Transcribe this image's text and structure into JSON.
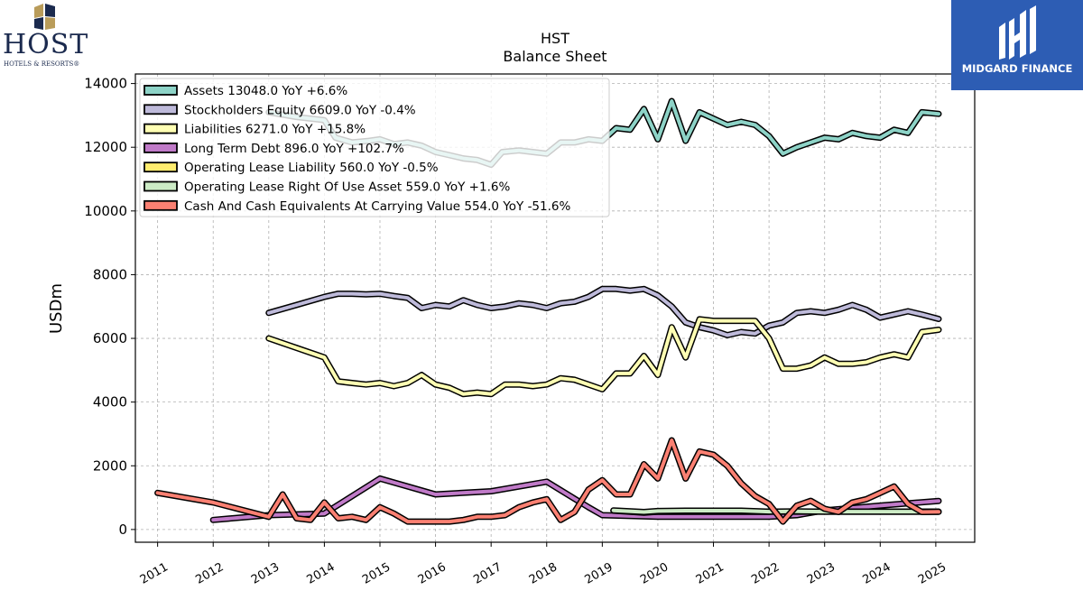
{
  "brand": {
    "host_name": "HOST",
    "host_sub": "HOTELS & RESORTS®",
    "watermark": "MIDGARD FINANCE"
  },
  "chart_data": {
    "type": "line",
    "title": "HST",
    "subtitle": "Balance  Sheet",
    "ylabel": "USDm",
    "xlabel": "",
    "ylim": [
      -400,
      14300
    ],
    "xlim": [
      2010.6,
      2025.7
    ],
    "yticks": [
      0,
      2000,
      4000,
      6000,
      8000,
      10000,
      12000,
      14000
    ],
    "xticks": [
      "2011",
      "2012",
      "2013",
      "2014",
      "2015",
      "2016",
      "2017",
      "2018",
      "2019",
      "2020",
      "2021",
      "2022",
      "2023",
      "2024",
      "2025"
    ],
    "grid": true,
    "legend_position": "top-left",
    "series": [
      {
        "name": "Assets",
        "legend": "Assets  13048.0 YoY +6.6%",
        "color": "#8dd3c7",
        "points": [
          [
            2013.0,
            13100
          ],
          [
            2013.5,
            12950
          ],
          [
            2014.0,
            12850
          ],
          [
            2014.2,
            12300
          ],
          [
            2014.5,
            12150
          ],
          [
            2014.8,
            12200
          ],
          [
            2015.0,
            12250
          ],
          [
            2015.25,
            12100
          ],
          [
            2015.5,
            12150
          ],
          [
            2015.75,
            12050
          ],
          [
            2016.0,
            11850
          ],
          [
            2016.25,
            11750
          ],
          [
            2016.5,
            11650
          ],
          [
            2016.75,
            11600
          ],
          [
            2017.0,
            11450
          ],
          [
            2017.2,
            11850
          ],
          [
            2017.5,
            11900
          ],
          [
            2017.75,
            11850
          ],
          [
            2018.0,
            11800
          ],
          [
            2018.25,
            12150
          ],
          [
            2018.5,
            12150
          ],
          [
            2018.75,
            12250
          ],
          [
            2019.0,
            12200
          ],
          [
            2019.25,
            12600
          ],
          [
            2019.5,
            12550
          ],
          [
            2019.75,
            13200
          ],
          [
            2020.0,
            12250
          ],
          [
            2020.25,
            13450
          ],
          [
            2020.5,
            12200
          ],
          [
            2020.75,
            13100
          ],
          [
            2021.0,
            12900
          ],
          [
            2021.25,
            12700
          ],
          [
            2021.5,
            12800
          ],
          [
            2021.75,
            12700
          ],
          [
            2022.0,
            12350
          ],
          [
            2022.25,
            11800
          ],
          [
            2022.5,
            12000
          ],
          [
            2022.75,
            12150
          ],
          [
            2023.0,
            12300
          ],
          [
            2023.25,
            12250
          ],
          [
            2023.5,
            12450
          ],
          [
            2023.75,
            12350
          ],
          [
            2024.0,
            12300
          ],
          [
            2024.25,
            12550
          ],
          [
            2024.5,
            12450
          ],
          [
            2024.75,
            13100
          ],
          [
            2025.05,
            13048
          ]
        ]
      },
      {
        "name": "Stockholders Equity",
        "legend": "Stockholders Equity  6609.0 YoY -0.4%",
        "color": "#bebada",
        "points": [
          [
            2013.0,
            6800
          ],
          [
            2013.5,
            7050
          ],
          [
            2014.0,
            7300
          ],
          [
            2014.25,
            7400
          ],
          [
            2014.5,
            7400
          ],
          [
            2014.75,
            7380
          ],
          [
            2015.0,
            7400
          ],
          [
            2015.25,
            7330
          ],
          [
            2015.5,
            7270
          ],
          [
            2015.75,
            6950
          ],
          [
            2016.0,
            7050
          ],
          [
            2016.25,
            7000
          ],
          [
            2016.5,
            7200
          ],
          [
            2016.75,
            7050
          ],
          [
            2017.0,
            6950
          ],
          [
            2017.25,
            7000
          ],
          [
            2017.5,
            7100
          ],
          [
            2017.75,
            7050
          ],
          [
            2018.0,
            6950
          ],
          [
            2018.25,
            7100
          ],
          [
            2018.5,
            7150
          ],
          [
            2018.75,
            7300
          ],
          [
            2019.0,
            7550
          ],
          [
            2019.25,
            7550
          ],
          [
            2019.5,
            7500
          ],
          [
            2019.75,
            7550
          ],
          [
            2020.0,
            7350
          ],
          [
            2020.25,
            7000
          ],
          [
            2020.5,
            6500
          ],
          [
            2020.75,
            6350
          ],
          [
            2021.0,
            6250
          ],
          [
            2021.25,
            6100
          ],
          [
            2021.5,
            6200
          ],
          [
            2021.75,
            6150
          ],
          [
            2022.0,
            6400
          ],
          [
            2022.25,
            6500
          ],
          [
            2022.5,
            6800
          ],
          [
            2022.75,
            6850
          ],
          [
            2023.0,
            6800
          ],
          [
            2023.25,
            6900
          ],
          [
            2023.5,
            7050
          ],
          [
            2023.75,
            6900
          ],
          [
            2024.0,
            6650
          ],
          [
            2024.25,
            6750
          ],
          [
            2024.5,
            6850
          ],
          [
            2024.75,
            6750
          ],
          [
            2025.05,
            6609
          ]
        ]
      },
      {
        "name": "Liabilities",
        "legend": "Liabilities  6271.0 YoY +15.8%",
        "color": "#ffffb3",
        "points": [
          [
            2013.0,
            6000
          ],
          [
            2013.5,
            5700
          ],
          [
            2014.0,
            5400
          ],
          [
            2014.25,
            4650
          ],
          [
            2014.5,
            4600
          ],
          [
            2014.75,
            4550
          ],
          [
            2015.0,
            4600
          ],
          [
            2015.25,
            4500
          ],
          [
            2015.5,
            4600
          ],
          [
            2015.75,
            4850
          ],
          [
            2016.0,
            4550
          ],
          [
            2016.25,
            4450
          ],
          [
            2016.5,
            4250
          ],
          [
            2016.75,
            4300
          ],
          [
            2017.0,
            4250
          ],
          [
            2017.25,
            4550
          ],
          [
            2017.5,
            4550
          ],
          [
            2017.75,
            4500
          ],
          [
            2018.0,
            4550
          ],
          [
            2018.25,
            4750
          ],
          [
            2018.5,
            4700
          ],
          [
            2018.75,
            4550
          ],
          [
            2019.0,
            4400
          ],
          [
            2019.25,
            4900
          ],
          [
            2019.5,
            4900
          ],
          [
            2019.75,
            5450
          ],
          [
            2020.0,
            4850
          ],
          [
            2020.25,
            6350
          ],
          [
            2020.5,
            5400
          ],
          [
            2020.75,
            6600
          ],
          [
            2021.0,
            6550
          ],
          [
            2021.25,
            6550
          ],
          [
            2021.5,
            6550
          ],
          [
            2021.75,
            6550
          ],
          [
            2022.0,
            6000
          ],
          [
            2022.25,
            5050
          ],
          [
            2022.5,
            5050
          ],
          [
            2022.75,
            5150
          ],
          [
            2023.0,
            5400
          ],
          [
            2023.25,
            5200
          ],
          [
            2023.5,
            5200
          ],
          [
            2023.75,
            5250
          ],
          [
            2024.0,
            5400
          ],
          [
            2024.25,
            5500
          ],
          [
            2024.5,
            5400
          ],
          [
            2024.75,
            6200
          ],
          [
            2025.05,
            6271
          ]
        ]
      },
      {
        "name": "Long Term Debt",
        "legend": "Long Term Debt  896.0 YoY +102.7%",
        "color": "#c07ac8",
        "points": [
          [
            2012.0,
            300
          ],
          [
            2013.0,
            450
          ],
          [
            2014.0,
            500
          ],
          [
            2015.0,
            1600
          ],
          [
            2016.0,
            1100
          ],
          [
            2017.0,
            1200
          ],
          [
            2018.0,
            1500
          ],
          [
            2018.75,
            700
          ],
          [
            2019.0,
            450
          ],
          [
            2020.0,
            400
          ],
          [
            2021.0,
            400
          ],
          [
            2022.0,
            400
          ],
          [
            2022.5,
            450
          ],
          [
            2023.0,
            600
          ],
          [
            2024.0,
            750
          ],
          [
            2025.05,
            896
          ]
        ]
      },
      {
        "name": "Operating Lease Liability",
        "legend": "Operating Lease Liability  560.0 YoY -0.5%",
        "color": "#ffed6f",
        "points": [
          [
            2019.2,
            590
          ],
          [
            2019.75,
            530
          ],
          [
            2020.0,
            560
          ],
          [
            2020.5,
            560
          ],
          [
            2021.0,
            560
          ],
          [
            2021.5,
            560
          ],
          [
            2022.0,
            560
          ],
          [
            2022.5,
            560
          ],
          [
            2023.0,
            560
          ],
          [
            2023.5,
            560
          ],
          [
            2024.0,
            560
          ],
          [
            2024.5,
            560
          ],
          [
            2025.05,
            560
          ]
        ]
      },
      {
        "name": "Operating Lease Right Of Use Asset",
        "legend": "Operating Lease Right Of Use Asset  559.0 YoY +1.6%",
        "color": "#ccebc5",
        "points": [
          [
            2019.2,
            600
          ],
          [
            2019.75,
            550
          ],
          [
            2020.0,
            580
          ],
          [
            2020.5,
            590
          ],
          [
            2021.0,
            590
          ],
          [
            2021.5,
            590
          ],
          [
            2022.0,
            560
          ],
          [
            2022.5,
            570
          ],
          [
            2023.0,
            560
          ],
          [
            2023.5,
            560
          ],
          [
            2024.0,
            560
          ],
          [
            2024.5,
            560
          ],
          [
            2025.05,
            559
          ]
        ]
      },
      {
        "name": "Cash And Cash Equivalents At Carrying Value",
        "legend": "Cash And Cash Equivalents At Carrying Value  554.0 YoY -51.6%",
        "color": "#fb8072",
        "points": [
          [
            2011.0,
            1150
          ],
          [
            2012.0,
            850
          ],
          [
            2013.0,
            400
          ],
          [
            2013.25,
            1100
          ],
          [
            2013.5,
            350
          ],
          [
            2013.75,
            300
          ],
          [
            2014.0,
            850
          ],
          [
            2014.25,
            350
          ],
          [
            2014.5,
            400
          ],
          [
            2014.75,
            300
          ],
          [
            2015.0,
            700
          ],
          [
            2015.25,
            500
          ],
          [
            2015.5,
            250
          ],
          [
            2015.75,
            250
          ],
          [
            2016.0,
            250
          ],
          [
            2016.25,
            250
          ],
          [
            2016.5,
            300
          ],
          [
            2016.75,
            400
          ],
          [
            2017.0,
            400
          ],
          [
            2017.25,
            450
          ],
          [
            2017.5,
            700
          ],
          [
            2017.75,
            850
          ],
          [
            2018.0,
            950
          ],
          [
            2018.25,
            300
          ],
          [
            2018.5,
            550
          ],
          [
            2018.75,
            1250
          ],
          [
            2019.0,
            1550
          ],
          [
            2019.25,
            1100
          ],
          [
            2019.5,
            1100
          ],
          [
            2019.75,
            2050
          ],
          [
            2020.0,
            1600
          ],
          [
            2020.25,
            2800
          ],
          [
            2020.5,
            1600
          ],
          [
            2020.75,
            2450
          ],
          [
            2021.0,
            2350
          ],
          [
            2021.25,
            2000
          ],
          [
            2021.5,
            1450
          ],
          [
            2021.75,
            1050
          ],
          [
            2022.0,
            800
          ],
          [
            2022.25,
            250
          ],
          [
            2022.5,
            750
          ],
          [
            2022.75,
            900
          ],
          [
            2023.0,
            650
          ],
          [
            2023.25,
            550
          ],
          [
            2023.5,
            850
          ],
          [
            2023.75,
            950
          ],
          [
            2024.0,
            1150
          ],
          [
            2024.25,
            1350
          ],
          [
            2024.5,
            800
          ],
          [
            2024.75,
            550
          ],
          [
            2025.05,
            554
          ]
        ]
      }
    ]
  }
}
